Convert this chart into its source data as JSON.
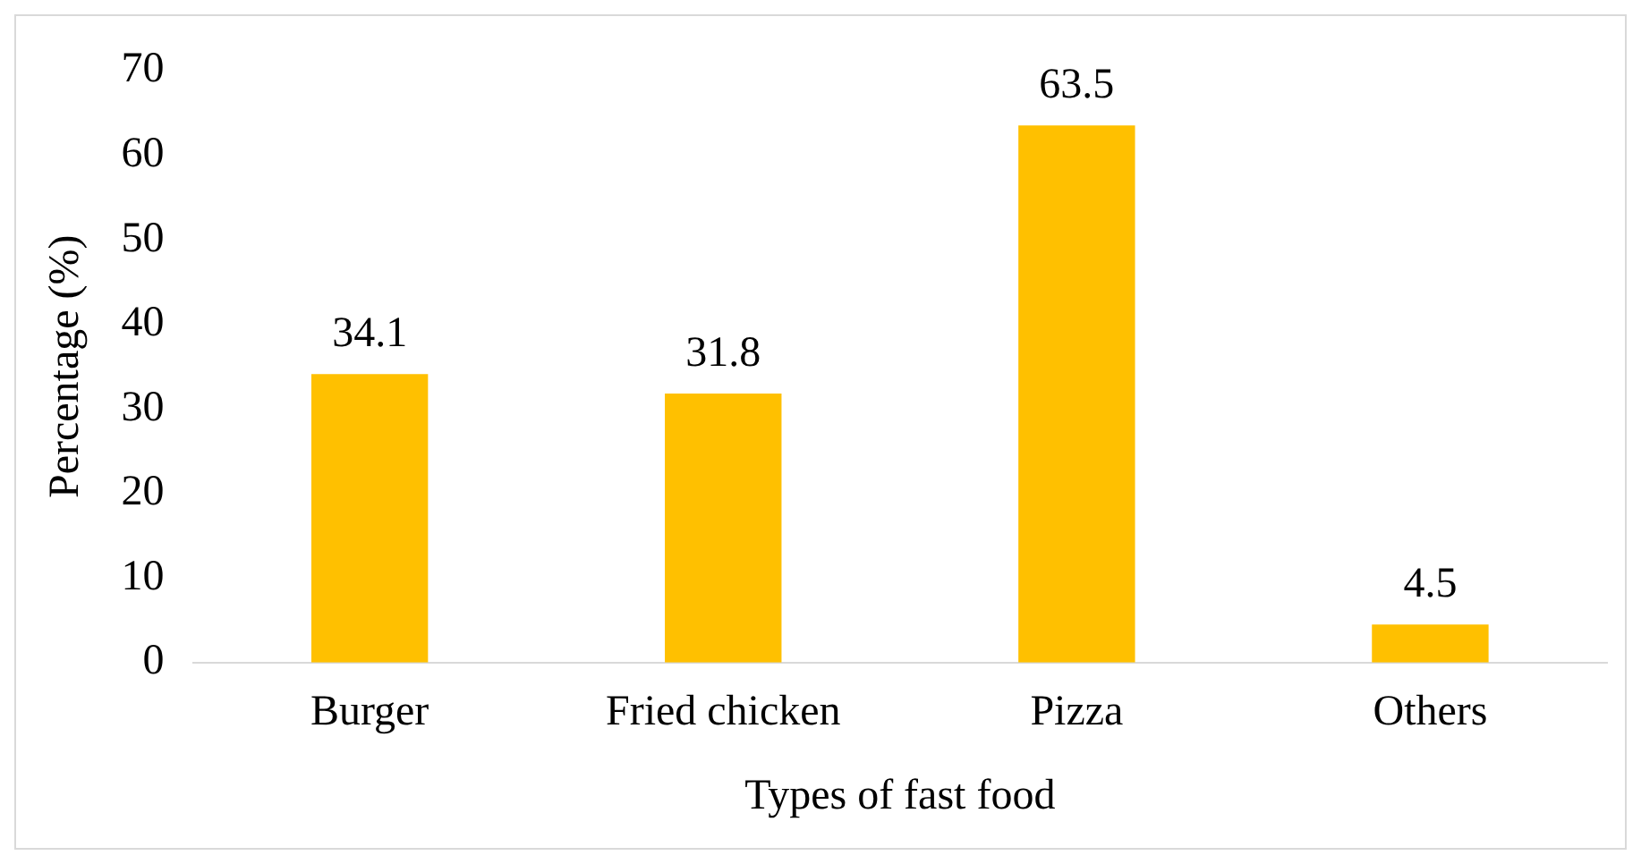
{
  "chart_data": {
    "type": "bar",
    "xlabel": "Types of fast food",
    "ylabel": "Percentage (%)",
    "categories": [
      "Burger",
      "Fried chicken",
      "Pizza",
      "Others"
    ],
    "values": [
      34.1,
      31.8,
      63.5,
      4.5
    ],
    "color": "#ffc000",
    "ylim": [
      0,
      70
    ],
    "yticks": [
      0,
      10,
      20,
      30,
      40,
      50,
      60,
      70
    ],
    "grid": false,
    "legend": false,
    "data_labels": true
  }
}
